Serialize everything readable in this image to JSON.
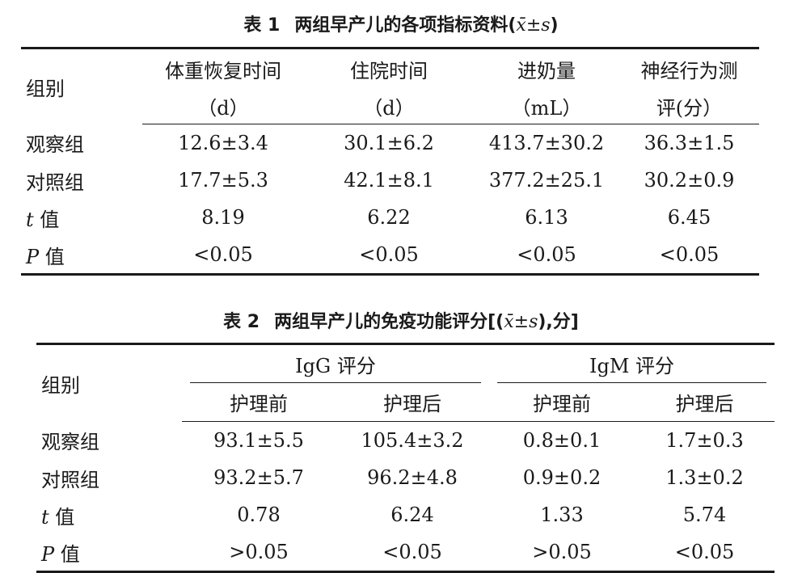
{
  "table1": {
    "caption": {
      "label": "表 1",
      "title": "两组早产儿的各项指标资料(",
      "stat": "x̄±s",
      "close": ")"
    },
    "header": {
      "group": "组别",
      "cols": [
        {
          "line1": "体重恢复时间",
          "line2": "（d）"
        },
        {
          "line1": "住院时间",
          "line2": "（d）"
        },
        {
          "line1": "进奶量",
          "line2": "（mL）"
        },
        {
          "line1": "神经行为测",
          "line2": "评(分）"
        }
      ]
    },
    "rows": [
      {
        "label": "观察组",
        "values": [
          "12.6±3.4",
          "30.1±6.2",
          "413.7±30.2",
          "36.3±1.5"
        ]
      },
      {
        "label": "对照组",
        "values": [
          "17.7±5.3",
          "42.1±8.1",
          "377.2±25.1",
          "30.2±0.9"
        ]
      },
      {
        "label_var": "t",
        "label_text": " 值",
        "values": [
          "8.19",
          "6.22",
          "6.13",
          "6.45"
        ]
      },
      {
        "label_var": "P",
        "label_text": " 值",
        "values": [
          "<0.05",
          "<0.05",
          "<0.05",
          "<0.05"
        ]
      }
    ]
  },
  "table2": {
    "caption": {
      "label": "表 2",
      "title": "两组早产儿的免疫功能评分[(",
      "stat": "x̄±s",
      "close": "),分]"
    },
    "header": {
      "group": "组别",
      "groups": [
        "IgG 评分",
        "IgM 评分"
      ],
      "sub": [
        "护理前",
        "护理后",
        "护理前",
        "护理后"
      ]
    },
    "rows": [
      {
        "label": "观察组",
        "values": [
          "93.1±5.5",
          "105.4±3.2",
          "0.8±0.1",
          "1.7±0.3"
        ]
      },
      {
        "label": "对照组",
        "values": [
          "93.2±5.7",
          "96.2±4.8",
          "0.9±0.2",
          "1.3±0.2"
        ]
      },
      {
        "label_var": "t",
        "label_text": " 值",
        "values": [
          "0.78",
          "6.24",
          "1.33",
          "5.74"
        ]
      },
      {
        "label_var": "P",
        "label_text": " 值",
        "values": [
          ">0.05",
          "<0.05",
          ">0.05",
          "<0.05"
        ]
      }
    ]
  }
}
